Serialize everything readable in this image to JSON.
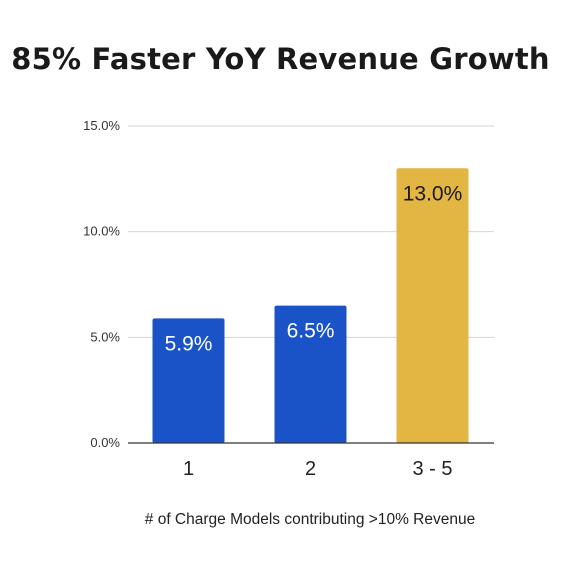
{
  "chart_data": {
    "type": "bar",
    "title": "85% Faster YoY Revenue Growth",
    "categories": [
      "1",
      "2",
      "3 - 5"
    ],
    "values": [
      5.9,
      6.5,
      13.0
    ],
    "data_labels": [
      "5.9%",
      "6.5%",
      "13.0%"
    ],
    "bar_colors": [
      "#1a53c8",
      "#1a53c8",
      "#e3b542"
    ],
    "label_colors": [
      "#ffffff",
      "#ffffff",
      "#1a1a1a"
    ],
    "xlabel": "# of Charge Models contributing >10% Revenue",
    "ylabel": "",
    "ylim": [
      0,
      15
    ],
    "yticks": [
      0,
      5,
      10,
      15
    ],
    "ytick_labels": [
      "0.0%",
      "5.0%",
      "10.0%",
      "15.0%"
    ],
    "grid": true,
    "legend": "none"
  }
}
